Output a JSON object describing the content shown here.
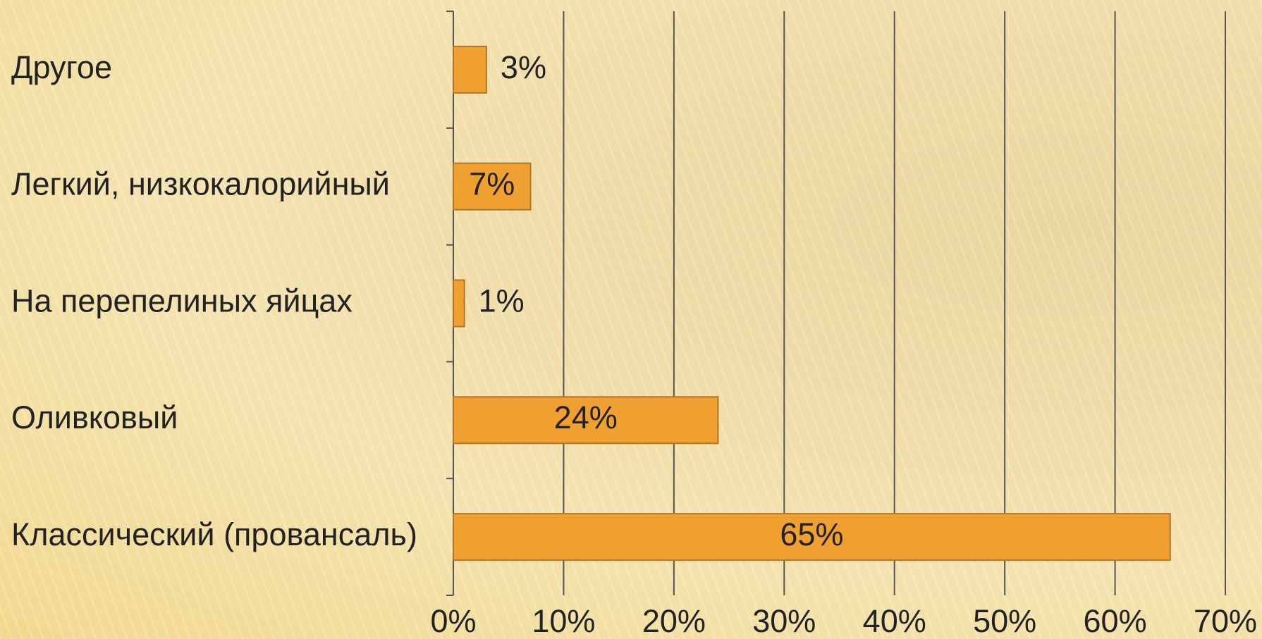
{
  "chart_data": {
    "type": "bar",
    "orientation": "horizontal",
    "categories": [
      "Другое",
      "Легкий, низкокалорийный",
      "На перепелиных яйцах",
      "Оливковый",
      "Классический (провансаль)"
    ],
    "values": [
      3,
      7,
      1,
      24,
      65
    ],
    "value_labels": [
      "3%",
      "7%",
      "1%",
      "24%",
      "65%"
    ],
    "color": "#f0a030",
    "xlim": [
      0,
      70
    ],
    "xticks": [
      {
        "value": 0,
        "label": "0%"
      },
      {
        "value": 10,
        "label": "10%"
      },
      {
        "value": 20,
        "label": "20%"
      },
      {
        "value": 30,
        "label": "30%"
      },
      {
        "value": 40,
        "label": "40%"
      },
      {
        "value": 50,
        "label": "50%"
      },
      {
        "value": 60,
        "label": "60%"
      },
      {
        "value": 70,
        "label": "70%"
      }
    ],
    "grid": true
  }
}
